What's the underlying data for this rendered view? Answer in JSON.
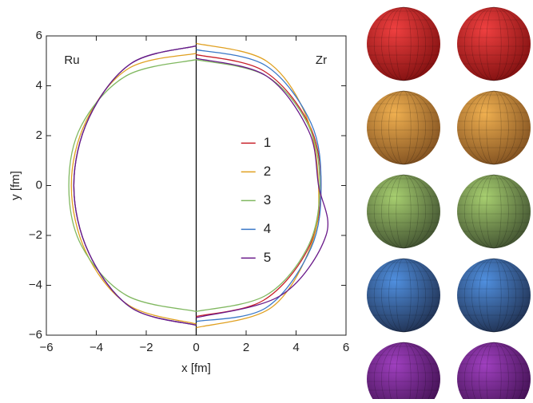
{
  "chart_data": {
    "type": "line",
    "xlabel": "x [fm]",
    "ylabel": "y [fm]",
    "annotations": [
      "Ru",
      "Zr"
    ],
    "xlim": [
      -6,
      6
    ],
    "ylim": [
      -6,
      6
    ],
    "xticks": [
      {
        "value": -6,
        "label": "−6"
      },
      {
        "value": -4,
        "label": "−4"
      },
      {
        "value": -2,
        "label": "−2"
      },
      0,
      2,
      4,
      6
    ],
    "yticks": [
      {
        "value": -6,
        "label": "−6"
      },
      {
        "value": -4,
        "label": "−4"
      },
      {
        "value": -2,
        "label": "−2"
      },
      0,
      2,
      4,
      6
    ],
    "legend": "center",
    "series": [
      {
        "name": "1",
        "color": "#c8202a",
        "x": [
          0,
          -2.6,
          -4.3,
          -4.9,
          -4.3,
          -2.6,
          0,
          null,
          0,
          2.7,
          4.5,
          5.0,
          4.5,
          2.7,
          0
        ],
        "y": [
          5.6,
          4.9,
          2.7,
          0,
          -2.7,
          -4.9,
          -5.6,
          null,
          5.25,
          4.6,
          2.5,
          0,
          -2.5,
          -4.6,
          -5.25
        ]
      },
      {
        "name": "2",
        "color": "#e0a020",
        "x": [
          0,
          -2.7,
          -4.4,
          -5.0,
          -4.4,
          -2.7,
          0,
          null,
          0,
          2.8,
          4.4,
          4.9,
          4.6,
          3.0,
          0
        ],
        "y": [
          5.3,
          4.7,
          2.6,
          0,
          -2.7,
          -4.8,
          -5.55,
          null,
          5.7,
          5.0,
          2.8,
          0,
          -2.4,
          -4.9,
          -5.7
        ]
      },
      {
        "name": "3",
        "color": "#80b860",
        "x": [
          0,
          -2.8,
          -4.6,
          -5.1,
          -4.6,
          -2.8,
          0,
          null,
          0,
          2.8,
          4.5,
          4.95,
          4.5,
          2.8,
          0
        ],
        "y": [
          5.05,
          4.4,
          2.4,
          0,
          -2.4,
          -4.4,
          -5.05,
          null,
          5.05,
          4.4,
          2.4,
          0,
          -2.4,
          -4.4,
          -5.05
        ]
      },
      {
        "name": "4",
        "color": "#3a78c8",
        "x": [
          0,
          -2.6,
          -4.3,
          -4.9,
          -4.3,
          -2.6,
          0,
          null,
          0,
          2.8,
          4.6,
          5.0,
          4.6,
          2.8,
          0
        ],
        "y": [
          5.6,
          4.9,
          2.7,
          0,
          -2.7,
          -4.9,
          -5.6,
          null,
          5.45,
          4.8,
          2.5,
          0,
          -2.5,
          -4.9,
          -5.45
        ]
      },
      {
        "name": "5",
        "color": "#6a1a8a",
        "x": [
          0,
          -2.6,
          -4.3,
          -4.9,
          -4.3,
          -2.6,
          0,
          null,
          0,
          2.8,
          4.5,
          4.9,
          5.2,
          3.4,
          0
        ],
        "y": [
          5.6,
          4.9,
          2.7,
          0,
          -2.7,
          -4.9,
          -5.6,
          null,
          5.1,
          4.4,
          2.2,
          0,
          -2.0,
          -4.4,
          -5.3
        ]
      }
    ]
  }
}
